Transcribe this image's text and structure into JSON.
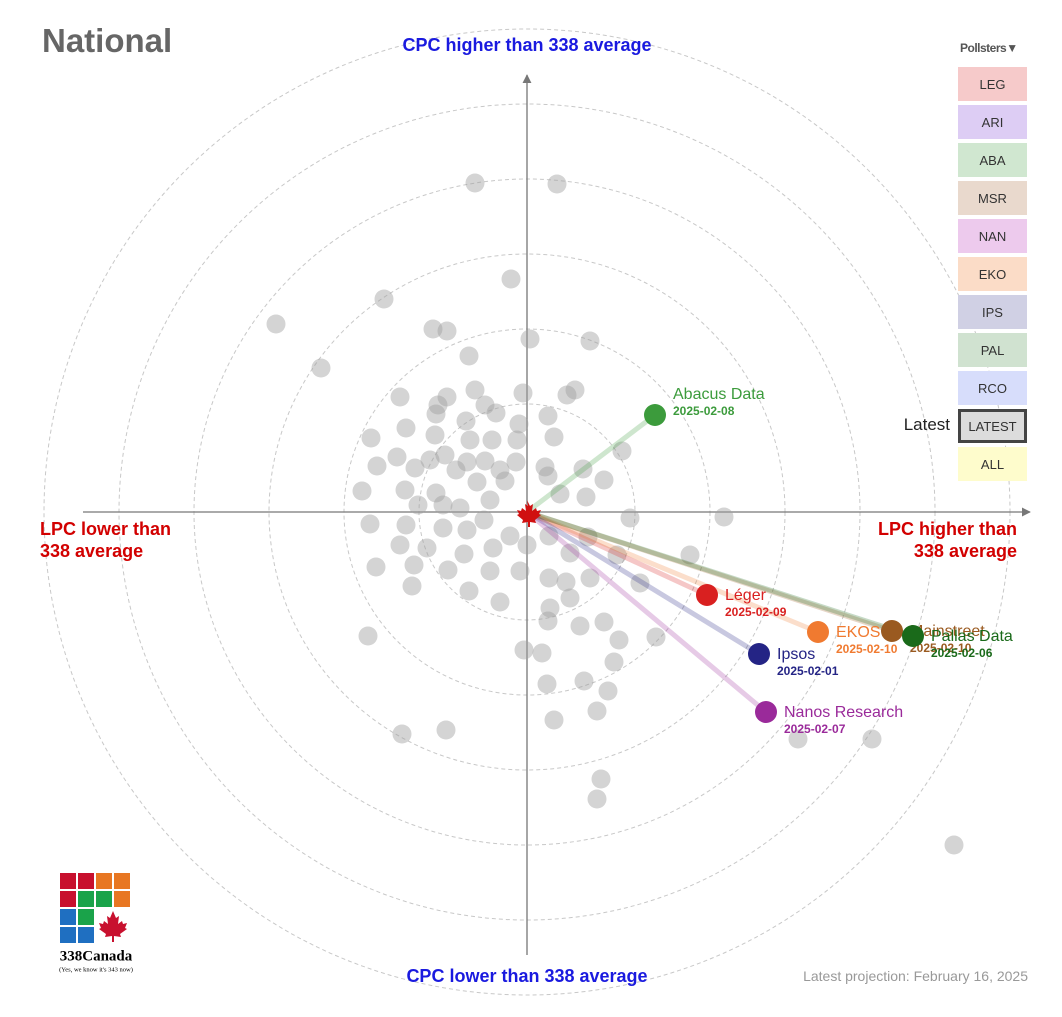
{
  "chart_data": {
    "type": "scatter",
    "title": "National",
    "y_high_label": "CPC higher than 338 average",
    "y_low_label": "CPC lower than 338 average",
    "x_low_label": "LPC lower than 338 average",
    "x_high_label": "LPC higher than 338 average",
    "xlim": [
      -44.4,
      50.3
    ],
    "ylim": [
      -44.3,
      43.7
    ],
    "series": [
      {
        "color": "#a0a0a0",
        "x": [
          -5.2,
          3,
          -1.6,
          -14.3,
          -25.1,
          -9.4,
          -8,
          6.3,
          0.3,
          -5.8,
          -20.6,
          -12.7,
          -8.9,
          -8,
          -5.2,
          -4.2,
          -0.4,
          4.8,
          4,
          -3.1,
          -0.8,
          2.1,
          -9.1,
          -6.1,
          -15.6,
          -12.1,
          -9.2,
          -5.7,
          -3.5,
          -1,
          2.7,
          9.5,
          -8.2,
          -6,
          -4.2,
          -1.1,
          1.8,
          5.6,
          -15,
          -13,
          -11.2,
          -9.7,
          -7.1,
          -2.7,
          2.1,
          7.7,
          -16.5,
          -12.2,
          -9.1,
          -5,
          -2.2,
          3.3,
          5.9,
          -6.7,
          -8.4,
          -10.9,
          -3.7,
          10.3,
          19.7,
          -15.7,
          -12.1,
          -8.4,
          -6,
          -4.3,
          -1.7,
          2.2,
          6.1,
          -12.7,
          -10,
          -6.3,
          -3.4,
          0,
          4.3,
          9,
          16.3,
          -15.1,
          -11.3,
          -7.9,
          -3.7,
          -0.7,
          2.2,
          3.9,
          6.3,
          11.3,
          -11.5,
          -5.8,
          -2.7,
          2.3,
          4.3,
          7.7,
          5.3,
          2.1,
          -15.9,
          12.9,
          9.2,
          -0.3,
          1.5,
          8.7,
          5.7,
          2,
          8.1,
          7,
          2.7,
          -8.1,
          -12.5,
          27.1,
          34.5,
          7.4,
          7,
          42.7
        ],
        "y": [
          32.9,
          32.8,
          23.3,
          21.3,
          18.8,
          18.3,
          18.1,
          17.1,
          17.3,
          15.6,
          14.4,
          11.5,
          10.7,
          11.5,
          12.2,
          10.7,
          11.9,
          12.2,
          11.7,
          9.9,
          8.8,
          9.6,
          9.8,
          9.1,
          7.4,
          8.4,
          7.7,
          7.2,
          7.2,
          7.2,
          7.5,
          6.1,
          5.7,
          5,
          5.1,
          5,
          4.5,
          4.3,
          4.6,
          5.5,
          4.4,
          5.2,
          4.2,
          4.2,
          3.6,
          3.2,
          2.1,
          2.2,
          1.9,
          3,
          3.1,
          1.8,
          1.5,
          0.4,
          0.7,
          0.7,
          1.2,
          -0.6,
          -0.5,
          -1.2,
          -1.3,
          -1.6,
          -1.8,
          -0.8,
          -2.4,
          -2.4,
          -2.5,
          -3.3,
          -3.6,
          -4.2,
          -3.6,
          -3.3,
          -4.1,
          -4.3,
          -4.3,
          -5.5,
          -5.3,
          -5.8,
          -5.9,
          -5.9,
          -6.6,
          -7,
          -6.6,
          -7.1,
          -7.4,
          -7.9,
          -9,
          -9.6,
          -8.6,
          -11,
          -11.4,
          -10.9,
          -12.4,
          -12.5,
          -12.8,
          -13.8,
          -14.1,
          -15,
          -16.9,
          -17.2,
          -17.9,
          -19.9,
          -20.8,
          -21.8,
          -22.2,
          -22.7,
          -22.7,
          -26.7,
          -28.7,
          -33.3
        ]
      },
      {
        "name": "Abacus Data",
        "color": "#3c9b3c",
        "x": [
          12.8
        ],
        "y": [
          9.7
        ],
        "point_labels": [
          "2025-02-08"
        ]
      },
      {
        "name": "Léger",
        "color": "#d92020",
        "x": [
          18
        ],
        "y": [
          -8.3
        ],
        "point_labels": [
          "2025-02-09"
        ]
      },
      {
        "name": "EKOS",
        "color": "#f07a30",
        "x": [
          29.1
        ],
        "y": [
          -12
        ],
        "point_labels": [
          "2025-02-10"
        ]
      },
      {
        "name": "Mainstreet",
        "color": "#9a5a20",
        "x": [
          36.5
        ],
        "y": [
          -11.9
        ],
        "point_labels": [
          "2025-02-10"
        ]
      },
      {
        "name": "Pallas Data",
        "color": "#1a6a1a",
        "x": [
          38.6
        ],
        "y": [
          -12.4
        ],
        "point_labels": [
          "2025-02-06"
        ]
      },
      {
        "name": "Ipsos",
        "color": "#242485",
        "x": [
          23.2
        ],
        "y": [
          -14.2
        ],
        "point_labels": [
          "2025-02-01"
        ]
      },
      {
        "name": "Nanos Research",
        "color": "#9a2a9a",
        "x": [
          23.9
        ],
        "y": [
          -20
        ],
        "point_labels": [
          "2025-02-07"
        ]
      }
    ]
  },
  "controls": {
    "header": "Pollsters▼",
    "latest_label": "Latest",
    "buttons": [
      {
        "label": "LEG",
        "color": "#f6caca"
      },
      {
        "label": "ARI",
        "color": "#ddcdf4"
      },
      {
        "label": "ABA",
        "color": "#d0e7d0"
      },
      {
        "label": "MSR",
        "color": "#e9d9cd"
      },
      {
        "label": "NAN",
        "color": "#edcaed"
      },
      {
        "label": "EKO",
        "color": "#fbdcc7"
      },
      {
        "label": "IPS",
        "color": "#d0d0e4"
      },
      {
        "label": "PAL",
        "color": "#d0e2d0"
      },
      {
        "label": "RCO",
        "color": "#d7ddfb"
      },
      {
        "label": "LATEST",
        "color": "#dcdcdc",
        "selected": true
      },
      {
        "label": "ALL",
        "color": "#fefccc"
      }
    ]
  },
  "logo": {
    "name": "338Canada",
    "tagline": "(Yes, we know it's 343 now)"
  },
  "footer": "Latest projection: February 16, 2025"
}
